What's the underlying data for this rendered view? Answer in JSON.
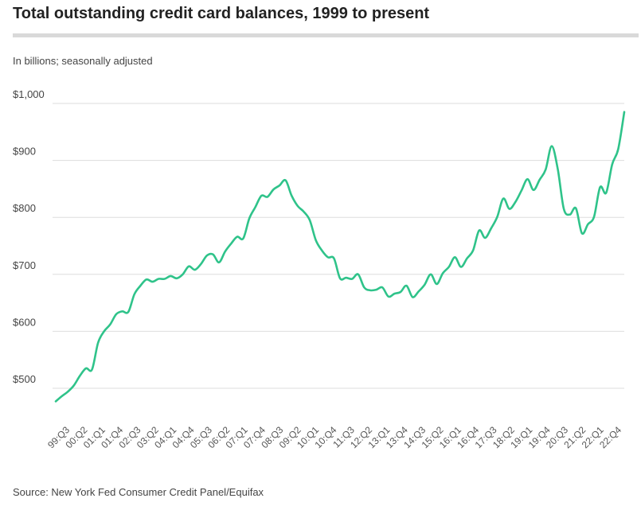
{
  "header": {
    "title": "Total outstanding credit card balances, 1999 to present",
    "subtitle": "In billions; seasonally adjusted"
  },
  "footer": {
    "source": "Source: New York Fed Consumer Credit Panel/Equifax"
  },
  "colors": {
    "line": "#2fc38a",
    "grid": "#dddddd",
    "rule": "#d9d9d9"
  },
  "chart_data": {
    "type": "line",
    "title": "Total outstanding credit card balances, 1999 to present",
    "subtitle": "In billions; seasonally adjusted",
    "xlabel": "",
    "ylabel": "",
    "ylim": [
      475,
      1000
    ],
    "y_ticks": [
      500,
      600,
      700,
      800,
      900,
      1000
    ],
    "y_tick_labels": [
      "$500",
      "$600",
      "$700",
      "$800",
      "$900",
      "$1,000"
    ],
    "grid": true,
    "x_tick_labels": [
      "99:Q3",
      "00:Q2",
      "01:Q1",
      "01:Q4",
      "02:Q3",
      "03:Q2",
      "04:Q1",
      "04:Q4",
      "05:Q3",
      "06:Q2",
      "07:Q1",
      "07:Q4",
      "08:Q3",
      "09:Q2",
      "10:Q1",
      "10:Q4",
      "11:Q3",
      "12:Q2",
      "13:Q1",
      "13:Q4",
      "14:Q3",
      "15:Q2",
      "16:Q1",
      "16:Q4",
      "17:Q3",
      "18:Q2",
      "19:Q1",
      "19:Q4",
      "20:Q3",
      "21:Q2",
      "22:Q1",
      "22:Q4"
    ],
    "series": [
      {
        "values": [
          477,
          486,
          494,
          505,
          522,
          535,
          533,
          580,
          600,
          612,
          630,
          635,
          634,
          665,
          680,
          691,
          687,
          692,
          692,
          697,
          693,
          700,
          714,
          708,
          718,
          733,
          735,
          721,
          740,
          754,
          766,
          763,
          798,
          818,
          838,
          836,
          849,
          856,
          865,
          838,
          820,
          810,
          795,
          760,
          742,
          730,
          728,
          693,
          694,
          692,
          700,
          677,
          672,
          673,
          677,
          661,
          666,
          669,
          680,
          660,
          670,
          682,
          700,
          683,
          702,
          713,
          730,
          713,
          728,
          742,
          777,
          764,
          781,
          801,
          833,
          815,
          827,
          847,
          867,
          848,
          866,
          884,
          925,
          885,
          815,
          805,
          816,
          772,
          788,
          801,
          853,
          843,
          893,
          920,
          985
        ]
      }
    ]
  }
}
